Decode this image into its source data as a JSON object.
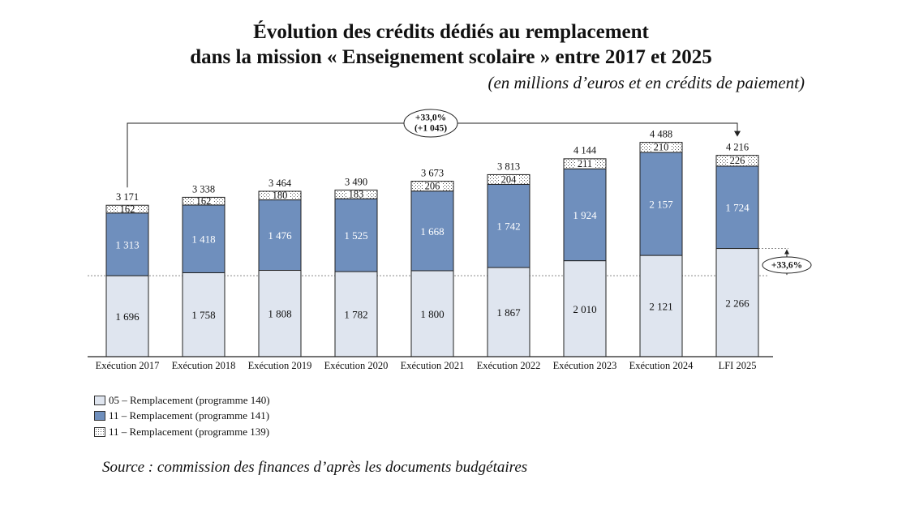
{
  "title_line1": "Évolution des crédits dédiés au remplacement",
  "title_line2": "dans la mission « Enseignement scolaire » entre 2017 et 2025",
  "subtitle": "(en millions d’euros et en crédits de paiement)",
  "source": "Source : commission des finances d’après les documents budgétaires",
  "colors": {
    "p140": "#dfe5ef",
    "p141": "#6f8fbd",
    "p139": "#ffffff"
  },
  "chart_data": {
    "type": "bar",
    "stacked": true,
    "categories": [
      "Exécution 2017",
      "Exécution 2018",
      "Exécution 2019",
      "Exécution 2020",
      "Exécution 2021",
      "Exécution 2022",
      "Exécution 2023",
      "Exécution 2024",
      "LFI 2025"
    ],
    "series": [
      {
        "name": "05 – Remplacement (programme 140)",
        "labels": [
          "1 696",
          "1 758",
          "1 808",
          "1 782",
          "1 800",
          "1 867",
          "2 010",
          "2 121",
          "2 266"
        ],
        "values": [
          1696,
          1758,
          1808,
          1782,
          1800,
          1867,
          2010,
          2121,
          2266
        ]
      },
      {
        "name": "11 – Remplacement (programme 141)",
        "labels": [
          "1 313",
          "1 418",
          "1 476",
          "1 525",
          "1 668",
          "1 742",
          "1 924",
          "2 157",
          "1 724"
        ],
        "values": [
          1313,
          1418,
          1476,
          1525,
          1668,
          1742,
          1924,
          2157,
          1724
        ]
      },
      {
        "name": "11 – Remplacement (programme 139)",
        "labels": [
          "162",
          "162",
          "180",
          "183",
          "206",
          "204",
          "211",
          "210",
          "226"
        ],
        "values": [
          162,
          162,
          180,
          183,
          206,
          204,
          211,
          210,
          226
        ]
      }
    ],
    "totals": [
      "3 171",
      "3 338",
      "3 464",
      "3 490",
      "3 673",
      "3 813",
      "4 144",
      "4 488",
      "4 216"
    ],
    "total_values": [
      3171,
      3338,
      3464,
      3490,
      3673,
      3813,
      4144,
      4488,
      4216
    ],
    "ylim": [
      0,
      4488
    ],
    "annotations": [
      {
        "text_line1": "+33,0%",
        "text_line2": "(+1 045)",
        "from_category": 0,
        "to_category": 8
      },
      {
        "text": "+33,6%",
        "category": 8
      }
    ],
    "legend_position": "bottom-left"
  }
}
